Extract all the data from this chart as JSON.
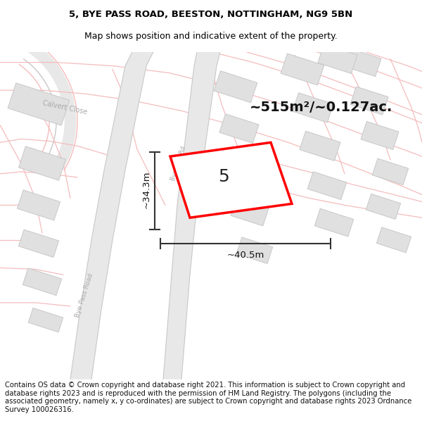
{
  "title_line1": "5, BYE PASS ROAD, BEESTON, NOTTINGHAM, NG9 5BN",
  "title_line2": "Map shows position and indicative extent of the property.",
  "footer_text": "Contains OS data © Crown copyright and database right 2021. This information is subject to Crown copyright and database rights 2023 and is reproduced with the permission of HM Land Registry. The polygons (including the associated geometry, namely x, y co-ordinates) are subject to Crown copyright and database rights 2023 Ordnance Survey 100026316.",
  "area_label": "~515m²/~0.127ac.",
  "width_label": "~40.5m",
  "height_label": "~34.3m",
  "property_number": "5",
  "map_bg": "#ffffff",
  "road_pink": "#f5bcbc",
  "road_gray_fill": "#e8e8e8",
  "road_gray_edge": "#c8c8c8",
  "road_label_color": "#aaaaaa",
  "building_color": "#e0e0e0",
  "building_outline": "#c8c8c8",
  "property_outline": "#ff0000",
  "dimension_line_color": "#333333",
  "title_fontsize": 9.5,
  "footer_fontsize": 7.2,
  "area_label_fontsize": 14,
  "number_fontsize": 18,
  "dim_label_fontsize": 9.5
}
